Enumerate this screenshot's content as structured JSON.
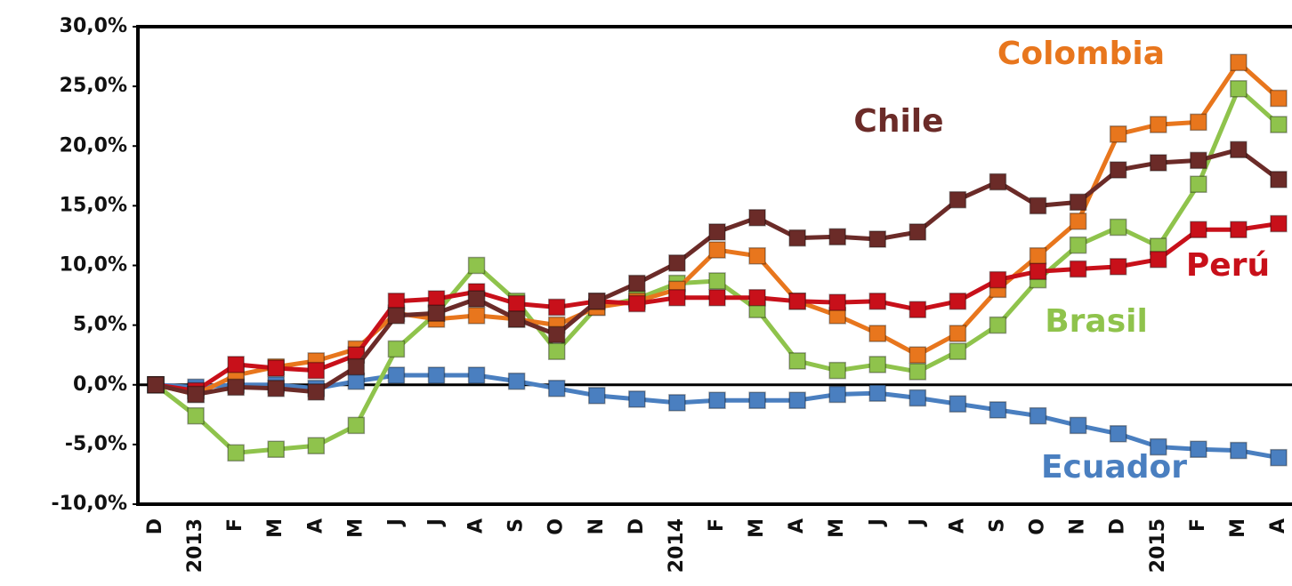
{
  "chart_data": {
    "type": "line",
    "categories": [
      "D",
      "2013",
      "F",
      "M",
      "A",
      "M",
      "J",
      "J",
      "A",
      "S",
      "O",
      "N",
      "D",
      "2014",
      "F",
      "M",
      "A",
      "M",
      "J",
      "J",
      "A",
      "S",
      "O",
      "N",
      "D",
      "2015",
      "F",
      "M",
      "A"
    ],
    "ylim": [
      -10,
      30
    ],
    "yticks": [
      {
        "value": -10,
        "label": "-10,0%"
      },
      {
        "value": -5,
        "label": "-5,0%"
      },
      {
        "value": 0,
        "label": "0,0%"
      },
      {
        "value": 5,
        "label": "5,0%"
      },
      {
        "value": 10,
        "label": "10,0%"
      },
      {
        "value": 15,
        "label": "15,0%"
      },
      {
        "value": 20,
        "label": "20,0%"
      },
      {
        "value": 25,
        "label": "25,0%"
      },
      {
        "value": 30,
        "label": "30,0%"
      }
    ],
    "series": [
      {
        "name": "Ecuador",
        "color": "#4a7fc0",
        "values": [
          0,
          -0.2,
          0,
          0,
          -0.3,
          0.3,
          0.8,
          0.8,
          0.8,
          0.3,
          -0.3,
          -0.9,
          -1.2,
          -1.5,
          -1.3,
          -1.3,
          -1.3,
          -0.8,
          -0.7,
          -1.1,
          -1.6,
          -2.1,
          -2.6,
          -3.4,
          -4.1,
          -5.2,
          -5.4,
          -5.5,
          -6.1
        ]
      },
      {
        "name": "Brasil",
        "color": "#8fc34c",
        "values": [
          0,
          -2.6,
          -5.7,
          -5.4,
          -5.1,
          -3.4,
          3,
          6,
          10,
          7,
          2.8,
          6.5,
          7.2,
          8.5,
          8.7,
          6.3,
          2,
          1.2,
          1.7,
          1.1,
          2.8,
          5,
          8.8,
          11.7,
          13.2,
          11.6,
          16.8,
          24.8,
          21.8
        ]
      },
      {
        "name": "Colombia",
        "color": "#e8761d",
        "values": [
          0,
          -0.8,
          0.8,
          1.5,
          2,
          3,
          6,
          5.5,
          5.8,
          5.5,
          5,
          6.5,
          7,
          8,
          11.3,
          10.8,
          7,
          5.8,
          4.3,
          2.5,
          4.3,
          8,
          10.8,
          13.7,
          21,
          21.8,
          22,
          27,
          24
        ]
      },
      {
        "name": "Perú",
        "color": "#c8101a",
        "values": [
          0,
          -0.5,
          1.7,
          1.4,
          1.2,
          2.5,
          7,
          7.2,
          7.8,
          6.8,
          6.5,
          7,
          6.8,
          7.3,
          7.3,
          7.3,
          7,
          6.9,
          7,
          6.3,
          7,
          8.8,
          9.5,
          9.7,
          9.9,
          10.5,
          13,
          13,
          13.5
        ]
      },
      {
        "name": "Chile",
        "color": "#6b2b28",
        "values": [
          0,
          -0.8,
          -0.2,
          -0.3,
          -0.6,
          1.5,
          5.8,
          6,
          7.2,
          5.5,
          4.2,
          7,
          8.5,
          10.2,
          12.8,
          14,
          12.3,
          12.4,
          12.2,
          12.8,
          15.5,
          17,
          15,
          15.3,
          18,
          18.6,
          18.8,
          19.7,
          17.2
        ]
      }
    ]
  }
}
